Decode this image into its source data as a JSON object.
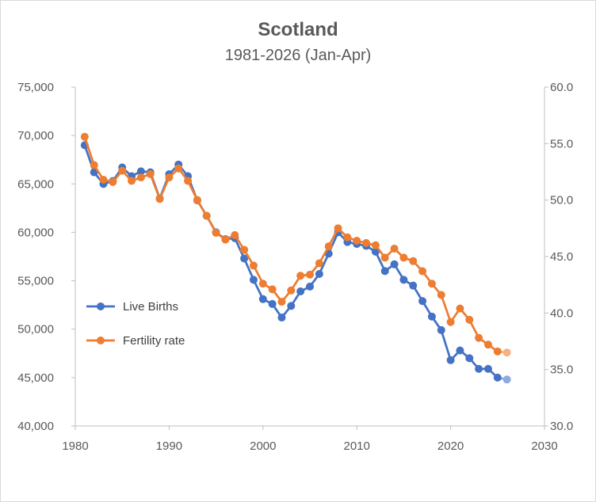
{
  "chart_data": {
    "type": "line",
    "title": "Scotland",
    "subtitle": "1981-2026 (Jan-Apr)",
    "x": [
      1981,
      1982,
      1983,
      1984,
      1985,
      1986,
      1987,
      1988,
      1989,
      1990,
      1991,
      1992,
      1993,
      1994,
      1995,
      1996,
      1997,
      1998,
      1999,
      2000,
      2001,
      2002,
      2003,
      2004,
      2005,
      2006,
      2007,
      2008,
      2009,
      2010,
      2011,
      2012,
      2013,
      2014,
      2015,
      2016,
      2017,
      2018,
      2019,
      2020,
      2021,
      2022,
      2023,
      2024,
      2025,
      2026
    ],
    "xlim": [
      1980,
      2030
    ],
    "x_ticks": [
      "1980",
      "1990",
      "2000",
      "2010",
      "2020",
      "2030"
    ],
    "ylim_left": [
      40000,
      75000
    ],
    "y_ticks_left": [
      "40,000",
      "45,000",
      "50,000",
      "55,000",
      "60,000",
      "65,000",
      "70,000",
      "75,000"
    ],
    "ylim_right": [
      30,
      60
    ],
    "y_ticks_right": [
      "30.0",
      "35.0",
      "40.0",
      "45.0",
      "50.0",
      "55.0",
      "60.0"
    ],
    "grid": false,
    "legend_position": "left-middle",
    "series": [
      {
        "name": "Live Births",
        "axis": "left",
        "color": "#4472c4",
        "projected_color": "#8faadc",
        "values": [
          69000,
          66200,
          65000,
          65300,
          66700,
          65800,
          66300,
          66200,
          63500,
          66000,
          67000,
          65800,
          63300,
          61700,
          60000,
          59300,
          59400,
          57300,
          55100,
          53100,
          52600,
          51200,
          52400,
          53900,
          54400,
          55700,
          57800,
          60000,
          59000,
          58800,
          58600,
          58000,
          56000,
          56700,
          55100,
          54500,
          52900,
          51300,
          49900,
          46800,
          47800,
          47000,
          45900,
          45900,
          45000,
          44800
        ],
        "projected_last": true
      },
      {
        "name": "Fertility rate",
        "axis": "right",
        "color": "#ed7d31",
        "projected_color": "#f4b183",
        "values": [
          55.6,
          53.1,
          51.8,
          51.6,
          52.6,
          51.7,
          52.0,
          52.3,
          50.1,
          52.0,
          52.8,
          51.7,
          50.0,
          48.6,
          47.1,
          46.5,
          46.9,
          45.6,
          44.2,
          42.6,
          42.1,
          41.0,
          42.0,
          43.3,
          43.4,
          44.4,
          45.9,
          47.5,
          46.7,
          46.4,
          46.2,
          46.0,
          44.9,
          45.7,
          44.9,
          44.6,
          43.7,
          42.6,
          41.6,
          39.2,
          40.4,
          39.4,
          37.8,
          37.2,
          36.6,
          36.5
        ],
        "projected_last": true
      }
    ]
  }
}
